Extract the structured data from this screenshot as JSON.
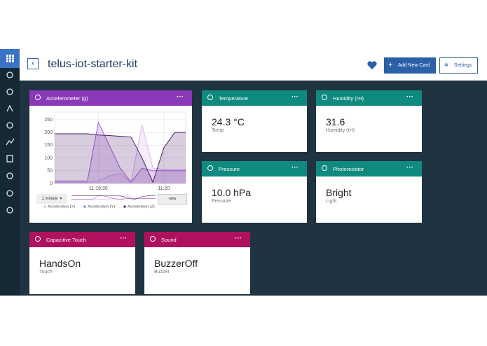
{
  "header": {
    "title": "telus-iot-starter-kit",
    "add_button": "Add New Card",
    "settings_button": "Settings"
  },
  "cards": [
    {
      "title": "Accelerometer (g)",
      "chart": {
        "type": "line",
        "categories": [
          null,
          null,
          null,
          null,
          "11:19:30",
          null,
          null,
          null,
          null,
          null,
          "11:20",
          null,
          null
        ],
        "series": [
          {
            "name": "Acceleration (X)",
            "color": "#d9b3f2",
            "values": [
              5,
              5,
              5,
              5,
              10,
              30,
              40,
              5,
              230,
              60,
              55,
              55,
              55
            ]
          },
          {
            "name": "Acceleration (Y)",
            "color": "#a55fd6",
            "values": [
              10,
              10,
              10,
              10,
              240,
              150,
              60,
              5,
              60,
              50,
              50,
              50,
              50
            ]
          },
          {
            "name": "Acceleration (Z)",
            "color": "#4a1d6a",
            "values": [
              195,
              195,
              195,
              195,
              190,
              188,
              185,
              182,
              100,
              5,
              140,
              200,
              200
            ]
          }
        ],
        "ylim": [
          0,
          280
        ],
        "yticks": [
          0,
          50,
          100,
          150,
          200,
          250
        ],
        "grid": true,
        "range_select": "1 minute",
        "now_button": "now"
      }
    },
    {
      "title": "Temperature",
      "value": "24.3 °C",
      "label": "Temp"
    },
    {
      "title": "Humidity (rH)",
      "value": "31.6",
      "label": "Humidity (rH)"
    },
    {
      "title": "Pressure",
      "value": "10.0 hPa",
      "label": "Pressure"
    },
    {
      "title": "Photoresistor",
      "value": "Bright",
      "label": "Light"
    },
    {
      "title": "Capacitive Touch",
      "value": "HandsOn",
      "label": "Touch"
    },
    {
      "title": "Sound",
      "value": "BuzzerOff",
      "label": "Buzzer"
    }
  ]
}
